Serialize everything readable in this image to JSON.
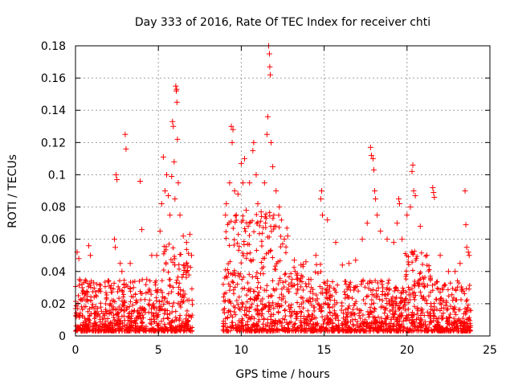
{
  "chart_data": {
    "type": "scatter",
    "title": "Day 333 of 2016, Rate Of TEC Index for receiver chti",
    "xlabel": "GPS time / hours",
    "ylabel": "ROTI / TECUs",
    "xlim": [
      0,
      25
    ],
    "ylim": [
      0,
      0.18
    ],
    "xticks": [
      0,
      5,
      10,
      15,
      20,
      25
    ],
    "xtick_labels": [
      "0",
      "5",
      "10",
      "15",
      "20",
      "25"
    ],
    "yticks": [
      0,
      0.02,
      0.04,
      0.06,
      0.08,
      0.1,
      0.12,
      0.14,
      0.16,
      0.18
    ],
    "ytick_labels": [
      "0",
      "0.02",
      "0.04",
      "0.06",
      "0.08",
      "0.1",
      "0.12",
      "0.14",
      "0.16",
      "0.18"
    ],
    "grid": true,
    "legend": "none",
    "marker": "+",
    "color": "#ff0000",
    "points": [
      [
        0.05,
        0.012
      ],
      [
        0.1,
        0.052
      ],
      [
        0.2,
        0.048
      ],
      [
        0.25,
        0.035
      ],
      [
        0.4,
        0.03
      ],
      [
        0.8,
        0.056
      ],
      [
        0.9,
        0.05
      ],
      [
        1.1,
        0.033
      ],
      [
        1.4,
        0.028
      ],
      [
        2.1,
        0.02
      ],
      [
        2.35,
        0.06
      ],
      [
        2.4,
        0.055
      ],
      [
        2.45,
        0.1
      ],
      [
        2.5,
        0.097
      ],
      [
        2.7,
        0.045
      ],
      [
        2.8,
        0.04
      ],
      [
        3.0,
        0.125
      ],
      [
        3.05,
        0.116
      ],
      [
        3.3,
        0.045
      ],
      [
        3.5,
        0.03
      ],
      [
        3.9,
        0.096
      ],
      [
        4.0,
        0.066
      ],
      [
        4.3,
        0.035
      ],
      [
        4.6,
        0.05
      ],
      [
        4.9,
        0.05
      ],
      [
        5.1,
        0.065
      ],
      [
        5.2,
        0.082
      ],
      [
        5.3,
        0.111
      ],
      [
        5.4,
        0.09
      ],
      [
        5.5,
        0.1
      ],
      [
        5.6,
        0.087
      ],
      [
        5.7,
        0.075
      ],
      [
        5.8,
        0.099
      ],
      [
        5.85,
        0.133
      ],
      [
        5.9,
        0.13
      ],
      [
        5.95,
        0.108
      ],
      [
        6.0,
        0.085
      ],
      [
        6.05,
        0.155
      ],
      [
        6.08,
        0.152
      ],
      [
        6.1,
        0.153
      ],
      [
        6.12,
        0.145
      ],
      [
        6.15,
        0.122
      ],
      [
        6.2,
        0.095
      ],
      [
        6.3,
        0.075
      ],
      [
        6.5,
        0.062
      ],
      [
        6.7,
        0.058
      ],
      [
        6.9,
        0.063
      ],
      [
        7.0,
        0.05
      ],
      [
        9.05,
        0.075
      ],
      [
        9.1,
        0.082
      ],
      [
        9.3,
        0.095
      ],
      [
        9.4,
        0.13
      ],
      [
        9.45,
        0.12
      ],
      [
        9.5,
        0.128
      ],
      [
        9.6,
        0.09
      ],
      [
        9.7,
        0.075
      ],
      [
        9.8,
        0.088
      ],
      [
        10.0,
        0.107
      ],
      [
        10.1,
        0.095
      ],
      [
        10.2,
        0.11
      ],
      [
        10.3,
        0.078
      ],
      [
        10.5,
        0.095
      ],
      [
        10.7,
        0.115
      ],
      [
        10.75,
        0.12
      ],
      [
        10.9,
        0.1
      ],
      [
        11.0,
        0.082
      ],
      [
        11.2,
        0.077
      ],
      [
        11.4,
        0.095
      ],
      [
        11.55,
        0.125
      ],
      [
        11.6,
        0.136
      ],
      [
        11.65,
        0.18
      ],
      [
        11.7,
        0.175
      ],
      [
        11.72,
        0.167
      ],
      [
        11.75,
        0.162
      ],
      [
        11.8,
        0.12
      ],
      [
        11.9,
        0.105
      ],
      [
        12.1,
        0.09
      ],
      [
        12.3,
        0.08
      ],
      [
        12.6,
        0.06
      ],
      [
        12.8,
        0.062
      ],
      [
        13.2,
        0.047
      ],
      [
        13.6,
        0.044
      ],
      [
        13.9,
        0.046
      ],
      [
        14.2,
        0.035
      ],
      [
        14.5,
        0.05
      ],
      [
        14.8,
        0.085
      ],
      [
        14.85,
        0.09
      ],
      [
        14.9,
        0.075
      ],
      [
        15.2,
        0.072
      ],
      [
        15.7,
        0.058
      ],
      [
        16.1,
        0.044
      ],
      [
        16.5,
        0.045
      ],
      [
        16.9,
        0.047
      ],
      [
        17.3,
        0.06
      ],
      [
        17.6,
        0.07
      ],
      [
        17.8,
        0.117
      ],
      [
        17.85,
        0.112
      ],
      [
        17.95,
        0.11
      ],
      [
        18.0,
        0.103
      ],
      [
        18.05,
        0.09
      ],
      [
        18.1,
        0.085
      ],
      [
        18.2,
        0.075
      ],
      [
        18.4,
        0.065
      ],
      [
        18.8,
        0.06
      ],
      [
        19.2,
        0.058
      ],
      [
        19.4,
        0.07
      ],
      [
        19.5,
        0.085
      ],
      [
        19.55,
        0.082
      ],
      [
        19.7,
        0.06
      ],
      [
        20.0,
        0.075
      ],
      [
        20.2,
        0.08
      ],
      [
        20.3,
        0.102
      ],
      [
        20.35,
        0.106
      ],
      [
        20.4,
        0.09
      ],
      [
        20.5,
        0.087
      ],
      [
        20.8,
        0.068
      ],
      [
        21.2,
        0.05
      ],
      [
        21.55,
        0.092
      ],
      [
        21.6,
        0.089
      ],
      [
        21.65,
        0.086
      ],
      [
        22.0,
        0.05
      ],
      [
        22.5,
        0.04
      ],
      [
        22.9,
        0.04
      ],
      [
        23.2,
        0.045
      ],
      [
        23.5,
        0.09
      ],
      [
        23.55,
        0.069
      ],
      [
        23.6,
        0.055
      ],
      [
        23.7,
        0.052
      ],
      [
        23.75,
        0.05
      ]
    ]
  }
}
